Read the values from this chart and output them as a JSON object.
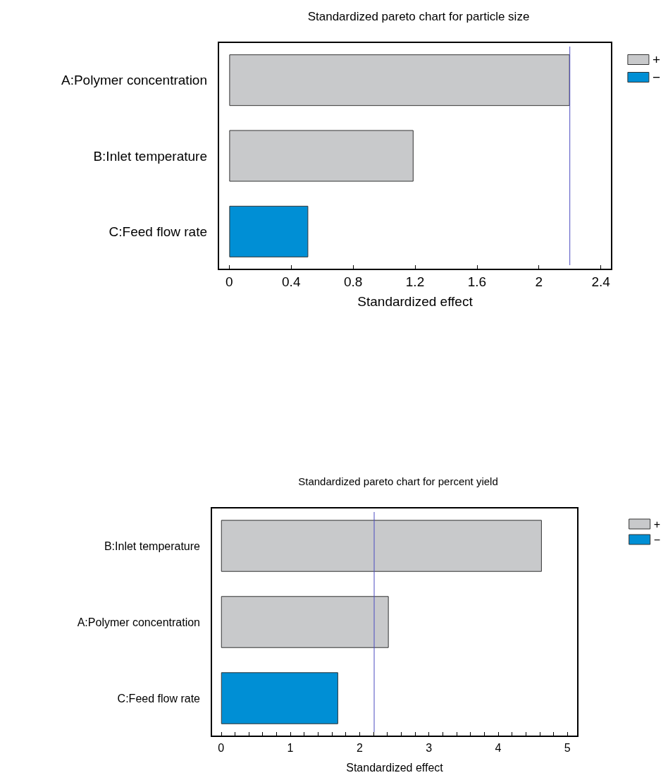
{
  "chart_data": [
    {
      "type": "bar",
      "orientation": "horizontal",
      "stacked": true,
      "title": "Standardized pareto chart for particle size",
      "xlabel": "Standardized effect",
      "categories": [
        "A:Polymer concentration",
        "B:Inlet temperature",
        "C:Feed flow rate"
      ],
      "series": [
        {
          "name": "+",
          "color": "#c8c9cb",
          "values": [
            2.2,
            1.19,
            null
          ]
        },
        {
          "name": "−",
          "color": "#008fd5",
          "values": [
            null,
            null,
            0.51
          ]
        }
      ],
      "xlim": [
        -0.07,
        2.47
      ],
      "xticks": [
        0,
        0.4,
        0.8,
        1.2,
        1.6,
        2,
        2.4
      ],
      "ref_lines": [
        {
          "axis": "x",
          "value": 2.2,
          "color": "#4a4ac0"
        }
      ],
      "legend": "top right",
      "grid": false
    },
    {
      "type": "bar",
      "orientation": "horizontal",
      "stacked": true,
      "title": "Standardized pareto chart for percent yield",
      "xlabel": "Standardized effect",
      "categories": [
        "B:Inlet temperature",
        "A:Polymer concentration",
        "C:Feed flow rate"
      ],
      "series": [
        {
          "name": "+",
          "color": "#c8c9cb",
          "values": [
            4.63,
            2.42,
            null
          ]
        },
        {
          "name": "−",
          "color": "#008fd5",
          "values": [
            null,
            null,
            1.69
          ]
        }
      ],
      "xlim": [
        -0.14,
        5.15
      ],
      "xticks": [
        0,
        {
          "value": 0.2,
          "label": null
        },
        {
          "value": 0.4,
          "label": null
        },
        {
          "value": 0.6,
          "label": null
        },
        {
          "value": 0.8,
          "label": null
        },
        1,
        {
          "value": 1.2,
          "label": null
        },
        {
          "value": 1.4,
          "label": null
        },
        {
          "value": 1.6,
          "label": null
        },
        {
          "value": 1.8,
          "label": null
        },
        2,
        {
          "value": 2.2,
          "label": null
        },
        {
          "value": 2.4,
          "label": null
        },
        {
          "value": 2.6,
          "label": null
        },
        {
          "value": 2.8,
          "label": null
        },
        3,
        {
          "value": 3.2,
          "label": null
        },
        {
          "value": 3.4,
          "label": null
        },
        {
          "value": 3.6,
          "label": null
        },
        {
          "value": 3.8,
          "label": null
        },
        4,
        {
          "value": 4.2,
          "label": null
        },
        {
          "value": 4.4,
          "label": null
        },
        {
          "value": 4.6,
          "label": null
        },
        {
          "value": 4.8,
          "label": null
        },
        5
      ],
      "ref_lines": [
        {
          "axis": "x",
          "value": 2.21,
          "color": "#4a4ac0"
        }
      ],
      "legend": "top right",
      "grid": false
    }
  ]
}
